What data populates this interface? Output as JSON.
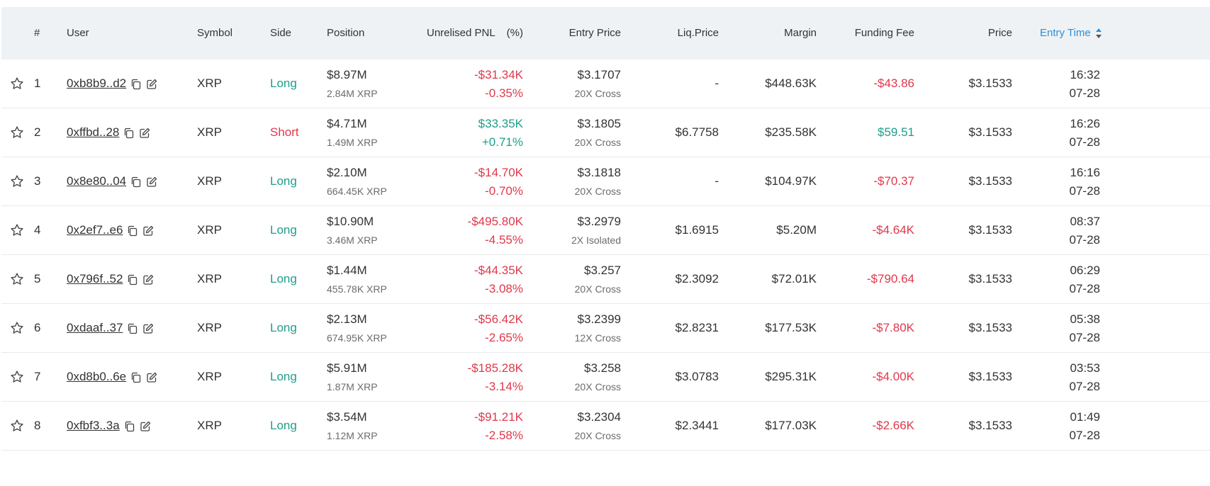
{
  "header": {
    "num": "#",
    "user": "User",
    "symbol": "Symbol",
    "side": "Side",
    "position": "Position",
    "pnl": "Unrelised PNL",
    "pct": "(%)",
    "entry_price": "Entry Price",
    "liq_price": "Liq.Price",
    "margin": "Margin",
    "funding_fee": "Funding Fee",
    "price": "Price",
    "entry_time": "Entry Time"
  },
  "colors": {
    "green": "#1f9e8c",
    "red": "#e0384b",
    "accent": "#2d8fd5",
    "header_bg": "#eef2f5"
  },
  "rows": [
    {
      "num": "1",
      "user": "0xb8b9..d2",
      "symbol": "XRP",
      "side": "Long",
      "position": "$8.97M",
      "position_qty": "2.84M XRP",
      "pnl": "-$31.34K",
      "pnl_pct": "-0.35%",
      "entry_price": "$3.1707",
      "leverage": "20X Cross",
      "liq_price": "-",
      "margin": "$448.63K",
      "funding_fee": "-$43.86",
      "price": "$3.1533",
      "time": "16:32",
      "date": "07-28"
    },
    {
      "num": "2",
      "user": "0xffbd..28",
      "symbol": "XRP",
      "side": "Short",
      "position": "$4.71M",
      "position_qty": "1.49M XRP",
      "pnl": "$33.35K",
      "pnl_pct": "+0.71%",
      "entry_price": "$3.1805",
      "leverage": "20X Cross",
      "liq_price": "$6.7758",
      "margin": "$235.58K",
      "funding_fee": "$59.51",
      "price": "$3.1533",
      "time": "16:26",
      "date": "07-28"
    },
    {
      "num": "3",
      "user": "0x8e80..04",
      "symbol": "XRP",
      "side": "Long",
      "position": "$2.10M",
      "position_qty": "664.45K XRP",
      "pnl": "-$14.70K",
      "pnl_pct": "-0.70%",
      "entry_price": "$3.1818",
      "leverage": "20X Cross",
      "liq_price": "-",
      "margin": "$104.97K",
      "funding_fee": "-$70.37",
      "price": "$3.1533",
      "time": "16:16",
      "date": "07-28"
    },
    {
      "num": "4",
      "user": "0x2ef7..e6",
      "symbol": "XRP",
      "side": "Long",
      "position": "$10.90M",
      "position_qty": "3.46M XRP",
      "pnl": "-$495.80K",
      "pnl_pct": "-4.55%",
      "entry_price": "$3.2979",
      "leverage": "2X Isolated",
      "liq_price": "$1.6915",
      "margin": "$5.20M",
      "funding_fee": "-$4.64K",
      "price": "$3.1533",
      "time": "08:37",
      "date": "07-28"
    },
    {
      "num": "5",
      "user": "0x796f..52",
      "symbol": "XRP",
      "side": "Long",
      "position": "$1.44M",
      "position_qty": "455.78K XRP",
      "pnl": "-$44.35K",
      "pnl_pct": "-3.08%",
      "entry_price": "$3.257",
      "leverage": "20X Cross",
      "liq_price": "$2.3092",
      "margin": "$72.01K",
      "funding_fee": "-$790.64",
      "price": "$3.1533",
      "time": "06:29",
      "date": "07-28"
    },
    {
      "num": "6",
      "user": "0xdaaf..37",
      "symbol": "XRP",
      "side": "Long",
      "position": "$2.13M",
      "position_qty": "674.95K XRP",
      "pnl": "-$56.42K",
      "pnl_pct": "-2.65%",
      "entry_price": "$3.2399",
      "leverage": "12X Cross",
      "liq_price": "$2.8231",
      "margin": "$177.53K",
      "funding_fee": "-$7.80K",
      "price": "$3.1533",
      "time": "05:38",
      "date": "07-28"
    },
    {
      "num": "7",
      "user": "0xd8b0..6e",
      "symbol": "XRP",
      "side": "Long",
      "position": "$5.91M",
      "position_qty": "1.87M XRP",
      "pnl": "-$185.28K",
      "pnl_pct": "-3.14%",
      "entry_price": "$3.258",
      "leverage": "20X Cross",
      "liq_price": "$3.0783",
      "margin": "$295.31K",
      "funding_fee": "-$4.00K",
      "price": "$3.1533",
      "time": "03:53",
      "date": "07-28"
    },
    {
      "num": "8",
      "user": "0xfbf3..3a",
      "symbol": "XRP",
      "side": "Long",
      "position": "$3.54M",
      "position_qty": "1.12M XRP",
      "pnl": "-$91.21K",
      "pnl_pct": "-2.58%",
      "entry_price": "$3.2304",
      "leverage": "20X Cross",
      "liq_price": "$2.3441",
      "margin": "$177.03K",
      "funding_fee": "-$2.66K",
      "price": "$3.1533",
      "time": "01:49",
      "date": "07-28"
    }
  ]
}
